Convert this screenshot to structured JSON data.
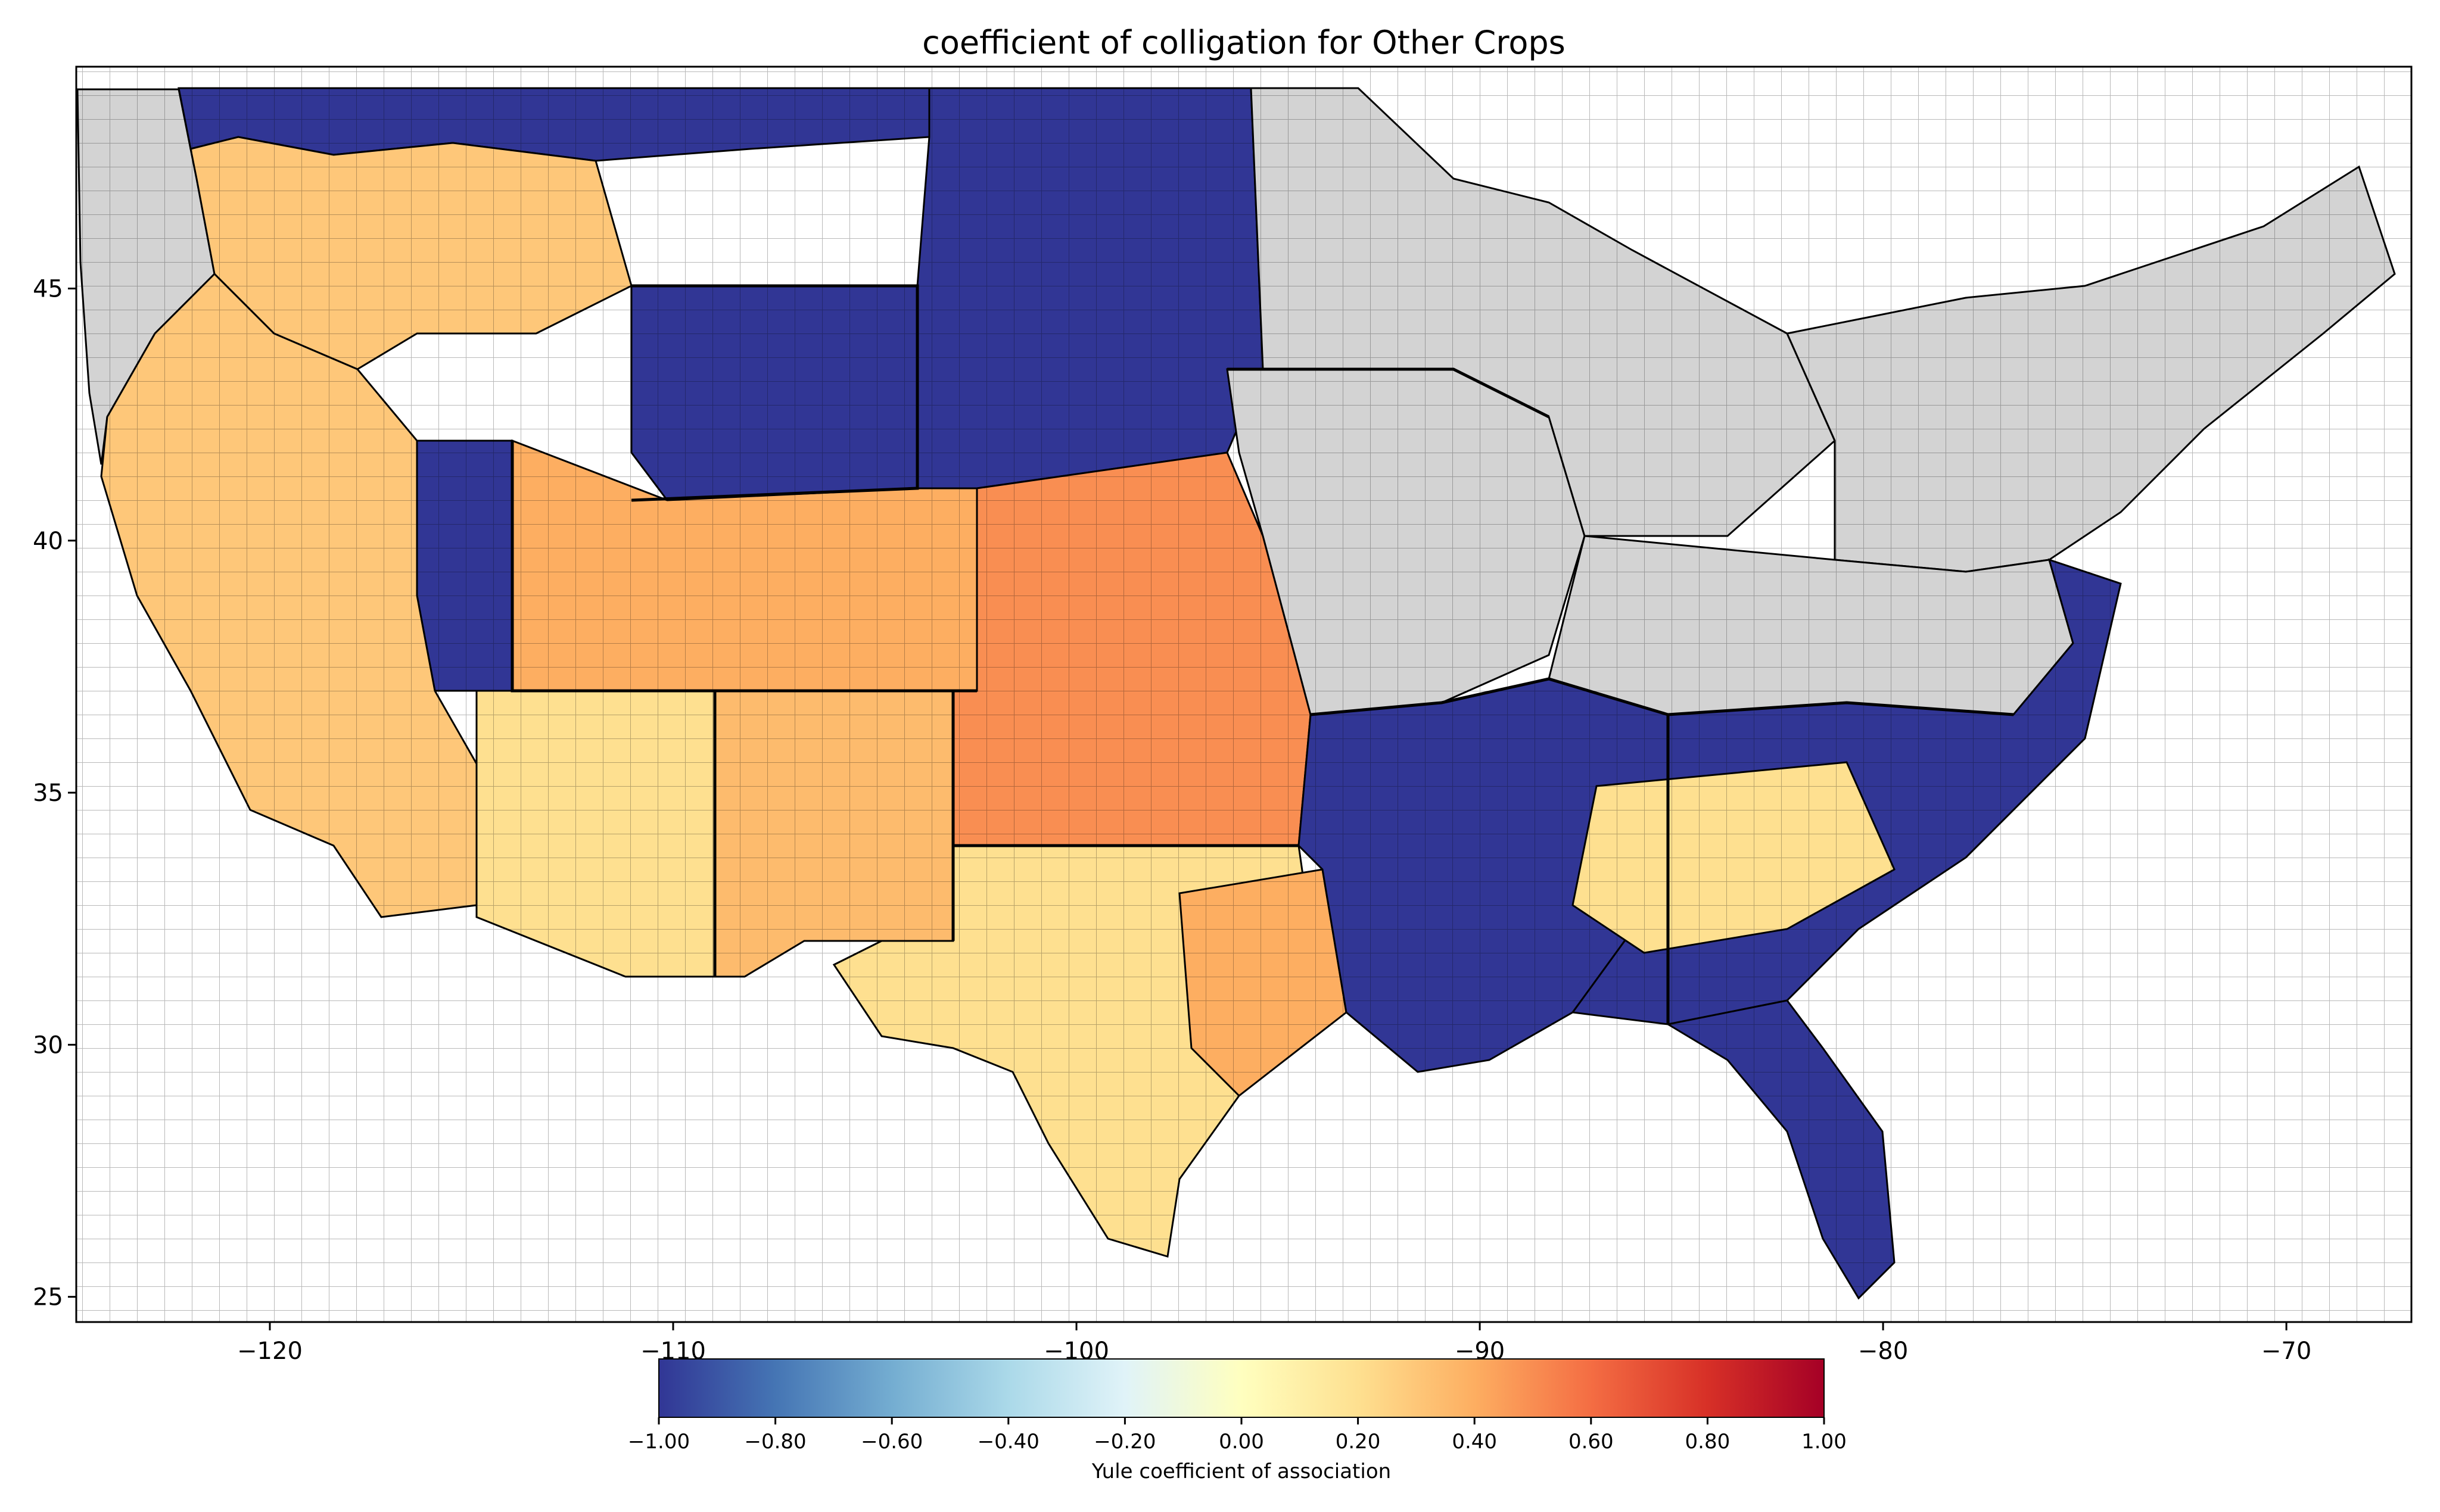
{
  "map": {
    "title": "coefficient of colligation for Other Crops",
    "x_ticks": [
      "−120",
      "−110",
      "−100",
      "−90",
      "−80",
      "−70"
    ],
    "x_tick_values": [
      -120,
      -110,
      -100,
      -90,
      -80,
      -70
    ],
    "y_ticks": [
      "25",
      "30",
      "35",
      "40",
      "45"
    ],
    "y_tick_values": [
      25,
      30,
      35,
      40,
      45
    ],
    "xlim": [
      -124.8,
      -66.9
    ],
    "ylim": [
      24.5,
      49.4
    ],
    "no_data_color": "#d3d3d3",
    "border_color": "#000000"
  },
  "colorbar": {
    "label": "Yule coefficient of association",
    "colormap": "RdYlBu_r",
    "range": [
      -1.0,
      1.0
    ],
    "ticks": [
      "−1.00",
      "−0.80",
      "−0.60",
      "−0.40",
      "−0.20",
      "0.00",
      "0.20",
      "0.40",
      "0.60",
      "0.80",
      "1.00"
    ],
    "tick_values": [
      -1.0,
      -0.8,
      -0.6,
      -0.4,
      -0.2,
      0.0,
      0.2,
      0.4,
      0.6,
      0.8,
      1.0
    ],
    "stops": [
      "#313695",
      "#4575b4",
      "#74add1",
      "#abd9e9",
      "#e0f3f8",
      "#ffffbf",
      "#fee090",
      "#fdae61",
      "#f46d43",
      "#d73027",
      "#a50026"
    ]
  },
  "regions": [
    {
      "name": "northwest-coast",
      "value": null
    },
    {
      "name": "idaho-montana",
      "value": 0.3
    },
    {
      "name": "montana-north",
      "value": -1.0
    },
    {
      "name": "wyoming",
      "value": -1.0
    },
    {
      "name": "nevada-east",
      "value": -1.0
    },
    {
      "name": "california",
      "value": 0.3
    },
    {
      "name": "arizona",
      "value": 0.2
    },
    {
      "name": "new-mexico",
      "value": 0.35
    },
    {
      "name": "colorado",
      "value": 0.4
    },
    {
      "name": "plains-north",
      "value": -1.0
    },
    {
      "name": "plains-central",
      "value": 0.5
    },
    {
      "name": "texas",
      "value": 0.2
    },
    {
      "name": "texas-east",
      "value": 0.4
    },
    {
      "name": "midwest",
      "value": null
    },
    {
      "name": "great-lakes",
      "value": null
    },
    {
      "name": "northeast",
      "value": null
    },
    {
      "name": "mid-south",
      "value": -1.0
    },
    {
      "name": "southeast",
      "value": -1.0
    },
    {
      "name": "georgia-carolinas-piedmont",
      "value": 0.2
    },
    {
      "name": "florida",
      "value": -1.0
    },
    {
      "name": "appalachia",
      "value": null
    }
  ]
}
